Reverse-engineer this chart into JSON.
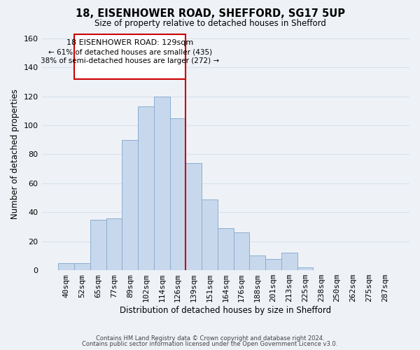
{
  "title": "18, EISENHOWER ROAD, SHEFFORD, SG17 5UP",
  "subtitle": "Size of property relative to detached houses in Shefford",
  "xlabel": "Distribution of detached houses by size in Shefford",
  "ylabel": "Number of detached properties",
  "bin_labels": [
    "40sqm",
    "52sqm",
    "65sqm",
    "77sqm",
    "89sqm",
    "102sqm",
    "114sqm",
    "126sqm",
    "139sqm",
    "151sqm",
    "164sqm",
    "176sqm",
    "188sqm",
    "201sqm",
    "213sqm",
    "225sqm",
    "238sqm",
    "250sqm",
    "262sqm",
    "275sqm",
    "287sqm"
  ],
  "bar_heights": [
    5,
    5,
    35,
    36,
    90,
    113,
    120,
    105,
    74,
    49,
    29,
    26,
    10,
    8,
    12,
    2,
    0,
    0,
    0,
    0,
    0
  ],
  "bar_color": "#c8d8ec",
  "bar_edge_color": "#8aadd0",
  "vline_x_index": 7.5,
  "vline_color": "#cc0000",
  "ylim": [
    0,
    160
  ],
  "yticks": [
    0,
    20,
    40,
    60,
    80,
    100,
    120,
    140,
    160
  ],
  "annotation_title": "18 EISENHOWER ROAD: 129sqm",
  "annotation_line1": "← 61% of detached houses are smaller (435)",
  "annotation_line2": "38% of semi-detached houses are larger (272) →",
  "annotation_box_color": "#ffffff",
  "annotation_border_color": "#cc0000",
  "footer_line1": "Contains HM Land Registry data © Crown copyright and database right 2024.",
  "footer_line2": "Contains public sector information licensed under the Open Government Licence v3.0.",
  "background_color": "#eef2f7",
  "grid_color": "#d8e0ea"
}
